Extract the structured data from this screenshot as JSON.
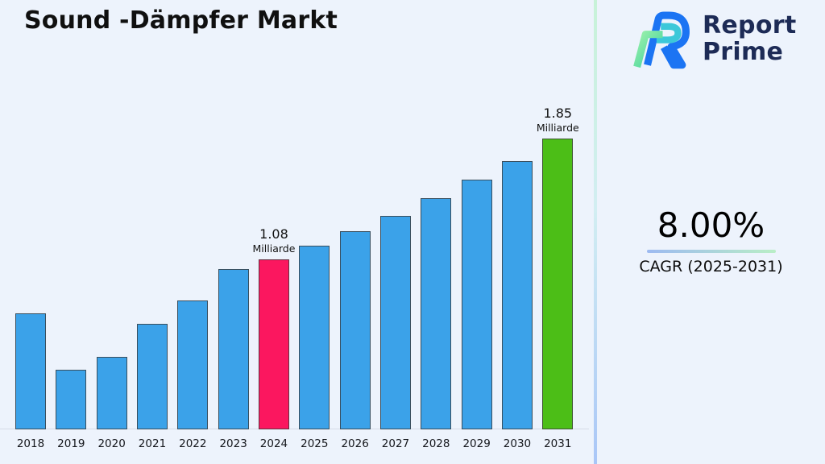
{
  "title": "Sound -Dämpfer Markt",
  "logo": {
    "line1": "Report",
    "line2": "Prime"
  },
  "stats": {
    "cagr_value": "8.00%",
    "cagr_label": "CAGR (2025-2031)"
  },
  "chart_data": {
    "type": "bar",
    "title": "Sound -Dämpfer Markt",
    "unit": "Milliarde",
    "categories": [
      "2018",
      "2019",
      "2020",
      "2021",
      "2022",
      "2023",
      "2024",
      "2025",
      "2026",
      "2027",
      "2028",
      "2029",
      "2030",
      "2031"
    ],
    "values": [
      0.74,
      0.38,
      0.46,
      0.67,
      0.82,
      1.02,
      1.08,
      1.17,
      1.26,
      1.36,
      1.47,
      1.59,
      1.71,
      1.85
    ],
    "labeled_points": [
      {
        "year": "2024",
        "value": "1.08",
        "unit": "Milliarde"
      },
      {
        "year": "2031",
        "value": "1.85",
        "unit": "Milliarde"
      }
    ],
    "highlight_current_index": 6,
    "highlight_final_index": 13,
    "ylim": [
      0,
      2.0
    ],
    "grid": false,
    "legend": false,
    "colors": {
      "bar_default": "#3ba2e9",
      "bar_highlight_current": "#fb175f",
      "bar_highlight_final": "#4cbe17",
      "bar_border": "#3a3a3a",
      "baseline": "#d6dbe6"
    }
  },
  "colors": {
    "background": "#edf3fc",
    "divider_top": "#c7f2d8",
    "divider_bottom": "#a9c6f7",
    "underline_blue": "#9dbaf1",
    "underline_green": "#b9eec6",
    "logo_navy": "#1d2b56",
    "logo_blue": "#1b74f3",
    "logo_teal": "#3cc8d9",
    "logo_green": "#55d98a"
  },
  "icons": {
    "logo_mark": "report-prime-monogram"
  }
}
